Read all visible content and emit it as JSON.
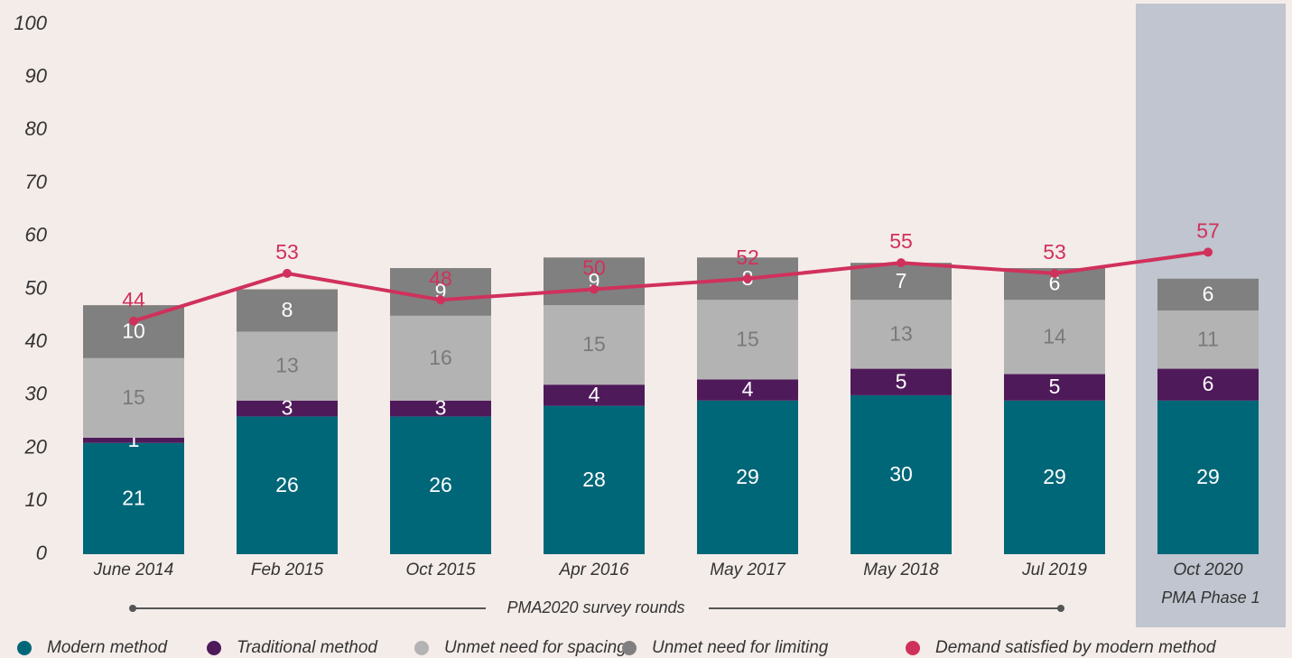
{
  "chart_data": {
    "type": "bar",
    "stacked": true,
    "categories": [
      "June 2014",
      "Feb 2015",
      "Oct 2015",
      "Apr 2016",
      "May 2017",
      "May 2018",
      "Jul 2019",
      "Oct 2020"
    ],
    "series": [
      {
        "name": "Modern method",
        "color": "#006778",
        "label_color": "#ffffff",
        "values": [
          21,
          26,
          26,
          28,
          29,
          30,
          29,
          29
        ]
      },
      {
        "name": "Traditional method",
        "color": "#4f1a5a",
        "label_color": "#ffffff",
        "values": [
          1,
          3,
          3,
          4,
          4,
          5,
          5,
          6
        ]
      },
      {
        "name": "Unmet need for spacing",
        "color": "#b3b3b3",
        "label_color": "#7a7a7a",
        "values": [
          15,
          13,
          16,
          15,
          15,
          13,
          14,
          11
        ]
      },
      {
        "name": "Unmet need for limiting",
        "color": "#808080",
        "label_color": "#ffffff",
        "values": [
          10,
          8,
          9,
          9,
          8,
          7,
          6,
          6
        ]
      },
      {
        "name": "Demand satisfied by modern method",
        "type": "line",
        "color": "#d0315c",
        "values": [
          44,
          53,
          48,
          50,
          52,
          55,
          53,
          57
        ]
      }
    ],
    "annotations": [
      "PMA2020 survey rounds",
      "PMA Phase 1"
    ],
    "ylim": [
      0,
      100
    ],
    "yticks": [
      0,
      10,
      20,
      30,
      40,
      50,
      60,
      70,
      80,
      90,
      100
    ],
    "grid": false,
    "legend": "bottom"
  }
}
